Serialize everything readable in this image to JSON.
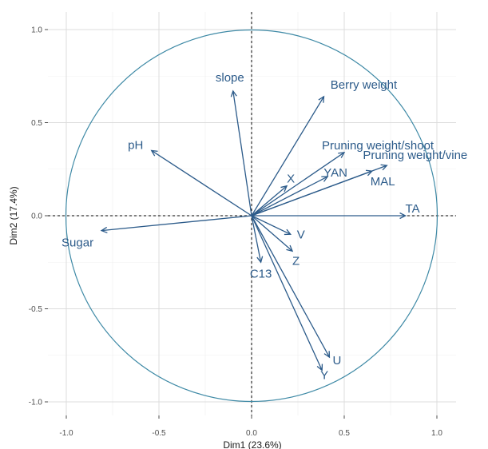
{
  "chart_data": {
    "type": "scatter",
    "subtype": "pca-correlation-circle",
    "title": "",
    "xlabel": "Dim1 (23.6%)",
    "ylabel": "Dim2 (17.4%)",
    "xlim": [
      -1.0,
      1.0
    ],
    "ylim": [
      -1.0,
      1.0
    ],
    "xticks": [
      "-1.0",
      "-0.5",
      "0.0",
      "0.5",
      "1.0"
    ],
    "yticks": [
      "-1.0",
      "-0.5",
      "0.0",
      "0.5",
      "1.0"
    ],
    "grid": true,
    "circle_radius": 1.0,
    "arrow_color": "#2c5b8a",
    "circle_color": "#3f8aa6",
    "variables": [
      {
        "name": "slope",
        "x": -0.1,
        "y": 0.67
      },
      {
        "name": "Berry weight",
        "x": 0.39,
        "y": 0.64
      },
      {
        "name": "pH",
        "x": -0.54,
        "y": 0.35
      },
      {
        "name": "Pruning weight/shoot",
        "x": 0.5,
        "y": 0.34
      },
      {
        "name": "Pruning weight/vine",
        "x": 0.73,
        "y": 0.27
      },
      {
        "name": "YAN",
        "x": 0.41,
        "y": 0.21
      },
      {
        "name": "MAL",
        "x": 0.65,
        "y": 0.24
      },
      {
        "name": "X",
        "x": 0.19,
        "y": 0.16
      },
      {
        "name": "TA",
        "x": 0.83,
        "y": 0.0
      },
      {
        "name": "Sugar",
        "x": -0.81,
        "y": -0.08
      },
      {
        "name": "V",
        "x": 0.21,
        "y": -0.1
      },
      {
        "name": "Z",
        "x": 0.22,
        "y": -0.19
      },
      {
        "name": "C13",
        "x": 0.05,
        "y": -0.25
      },
      {
        "name": "U",
        "x": 0.42,
        "y": -0.76
      },
      {
        "name": "Y",
        "x": 0.38,
        "y": -0.83
      }
    ]
  }
}
